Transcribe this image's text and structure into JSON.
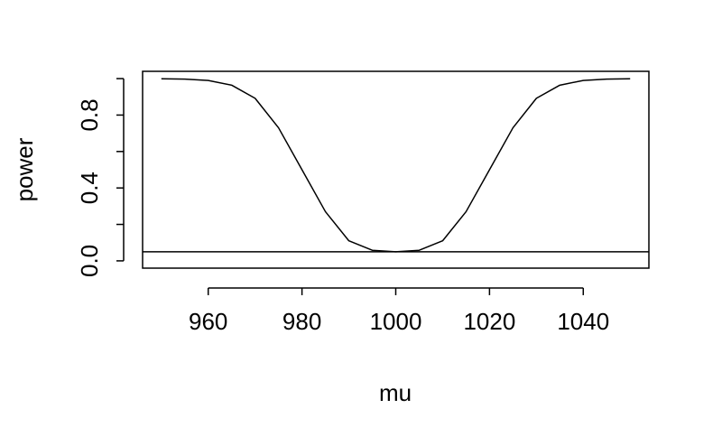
{
  "chart_data": {
    "type": "line",
    "title": "",
    "xlabel": "mu",
    "ylabel": "power",
    "xlim": [
      946,
      1054
    ],
    "ylim": [
      -0.04,
      1.04
    ],
    "x_ticks": [
      960,
      980,
      1000,
      1020,
      1040
    ],
    "x_tick_labels": [
      "960",
      "980",
      "1000",
      "1020",
      "1040"
    ],
    "y_ticks": [
      0.0,
      0.2,
      0.4,
      0.6,
      0.8,
      1.0
    ],
    "y_tick_labels": [
      "0.0",
      "",
      "0.4",
      "",
      "0.8",
      ""
    ],
    "grid": false,
    "series": [
      {
        "x": [
          950,
          955,
          960,
          965,
          970,
          975,
          980,
          985,
          990,
          995,
          1000,
          1005,
          1010,
          1015,
          1020,
          1025,
          1030,
          1035,
          1040,
          1045,
          1050
        ],
        "y": [
          0.999,
          0.997,
          0.99,
          0.964,
          0.892,
          0.73,
          0.5,
          0.27,
          0.11,
          0.058,
          0.05,
          0.058,
          0.11,
          0.27,
          0.5,
          0.73,
          0.892,
          0.964,
          0.99,
          0.997,
          0.999
        ],
        "color": "#000000"
      }
    ],
    "reference_lines": [
      {
        "orientation": "horizontal",
        "y": 0.05,
        "color": "#000000"
      }
    ]
  }
}
